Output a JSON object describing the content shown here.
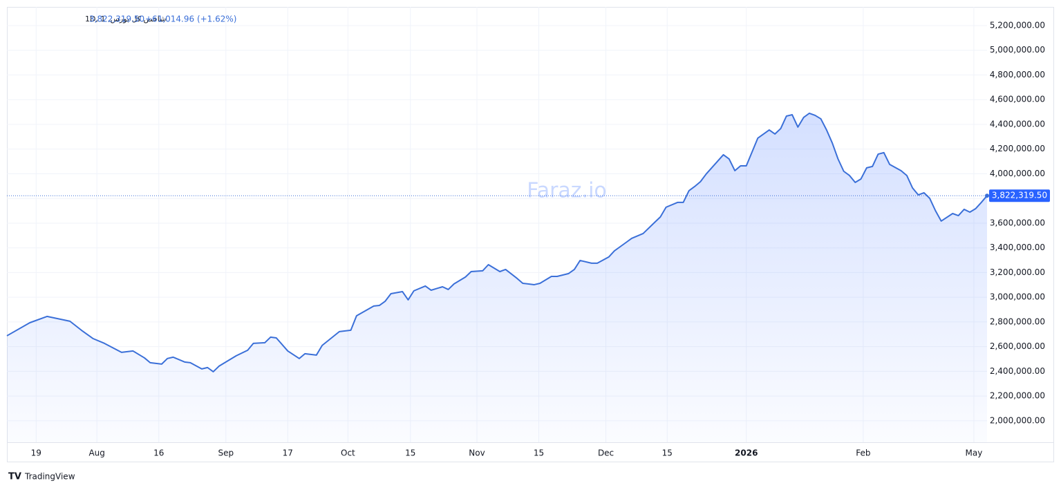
{
  "chart_data": {
    "type": "area",
    "title": "شاخص کل بورس, 1D, 1",
    "header_price": "3,822,319.50",
    "header_change": "+61,014.96 (+1.62%)",
    "watermark": "Faraz.io",
    "brand": "TradingView",
    "last_price_label": "3,822,319.50",
    "color": "#3a6fd8",
    "grid": true,
    "x": [
      0,
      4,
      7,
      11,
      13,
      15,
      17,
      20,
      22,
      24,
      25,
      27,
      28,
      29,
      31,
      32,
      34,
      35,
      36,
      37,
      40,
      42,
      43,
      45,
      46,
      47,
      49,
      51,
      52,
      54,
      55,
      58,
      60,
      61,
      64,
      65,
      66,
      67,
      69,
      70,
      71,
      73,
      74,
      76,
      77,
      78,
      80,
      81,
      83,
      84,
      86,
      87,
      89,
      90,
      92,
      93,
      95,
      96,
      98,
      99,
      100,
      102,
      103,
      105,
      106,
      108,
      109,
      111,
      113,
      114,
      115,
      117,
      118,
      119,
      120,
      121,
      122,
      125,
      126,
      127,
      128,
      129,
      130,
      131,
      133,
      134,
      135,
      136,
      137,
      138,
      139,
      140,
      141,
      142,
      143,
      144,
      145,
      146,
      147,
      148,
      149,
      150,
      151,
      152,
      153,
      154,
      156,
      157,
      158,
      159,
      160,
      161,
      162,
      163,
      165,
      166,
      167,
      168,
      169,
      170,
      171
    ],
    "values": [
      2688000,
      2794000,
      2845000,
      2806000,
      2733000,
      2666000,
      2627000,
      2554000,
      2565000,
      2509000,
      2470000,
      2459000,
      2504000,
      2515000,
      2476000,
      2470000,
      2420000,
      2431000,
      2397000,
      2442000,
      2526000,
      2571000,
      2627000,
      2632000,
      2677000,
      2671000,
      2565000,
      2504000,
      2543000,
      2532000,
      2610000,
      2722000,
      2733000,
      2850000,
      2929000,
      2934000,
      2968000,
      3029000,
      3046000,
      2979000,
      3052000,
      3091000,
      3057000,
      3085000,
      3063000,
      3108000,
      3164000,
      3208000,
      3214000,
      3264000,
      3208000,
      3225000,
      3153000,
      3113000,
      3102000,
      3113000,
      3169000,
      3169000,
      3192000,
      3225000,
      3298000,
      3276000,
      3276000,
      3326000,
      3376000,
      3443000,
      3477000,
      3516000,
      3606000,
      3650000,
      3729000,
      3768000,
      3768000,
      3863000,
      3897000,
      3936000,
      3998000,
      4154000,
      4120000,
      4025000,
      4064000,
      4064000,
      4176000,
      4288000,
      4355000,
      4322000,
      4366000,
      4467000,
      4478000,
      4378000,
      4456000,
      4490000,
      4473000,
      4445000,
      4355000,
      4249000,
      4120000,
      4020000,
      3986000,
      3930000,
      3958000,
      4048000,
      4059000,
      4159000,
      4171000,
      4076000,
      4025000,
      3986000,
      3885000,
      3829000,
      3846000,
      3801000,
      3701000,
      3617000,
      3678000,
      3661000,
      3712000,
      3689000,
      3717000,
      3768000,
      3822319.5
    ],
    "xlim": [
      0,
      171
    ],
    "ylim": [
      1826000,
      5351000
    ],
    "xticks": [
      {
        "value": 5.1,
        "label": "19"
      },
      {
        "value": 15.7,
        "label": "Aug"
      },
      {
        "value": 26.5,
        "label": "16"
      },
      {
        "value": 38.2,
        "label": "Sep"
      },
      {
        "value": 49,
        "label": "17"
      },
      {
        "value": 59.5,
        "label": "Oct"
      },
      {
        "value": 70.4,
        "label": "15"
      },
      {
        "value": 82,
        "label": "Nov"
      },
      {
        "value": 92.8,
        "label": "15"
      },
      {
        "value": 104.5,
        "label": "Dec"
      },
      {
        "value": 115.2,
        "label": "15"
      },
      {
        "value": 129,
        "label": "2026",
        "bold": true
      },
      {
        "value": 149.4,
        "label": "Feb"
      },
      {
        "value": 168.7,
        "label": "May"
      }
    ],
    "yticks": [
      {
        "value": 2000000,
        "label": "2,000,000.00"
      },
      {
        "value": 2200000,
        "label": "2,200,000.00"
      },
      {
        "value": 2400000,
        "label": "2,400,000.00"
      },
      {
        "value": 2600000,
        "label": "2,600,000.00"
      },
      {
        "value": 2800000,
        "label": "2,800,000.00"
      },
      {
        "value": 3000000,
        "label": "3,000,000.00"
      },
      {
        "value": 3200000,
        "label": "3,200,000.00"
      },
      {
        "value": 3400000,
        "label": "3,400,000.00"
      },
      {
        "value": 3600000,
        "label": "3,600,000.00"
      },
      {
        "value": 3800000,
        "label": "3,800,000.00"
      },
      {
        "value": 4000000,
        "label": "4,000,000.00"
      },
      {
        "value": 4200000,
        "label": "4,200,000.00"
      },
      {
        "value": 4400000,
        "label": "4,400,000.00"
      },
      {
        "value": 4600000,
        "label": "4,600,000.00"
      },
      {
        "value": 4800000,
        "label": "4,800,000.00"
      },
      {
        "value": 5000000,
        "label": "5,000,000.00"
      },
      {
        "value": 5200000,
        "label": "5,200,000.00"
      }
    ]
  }
}
